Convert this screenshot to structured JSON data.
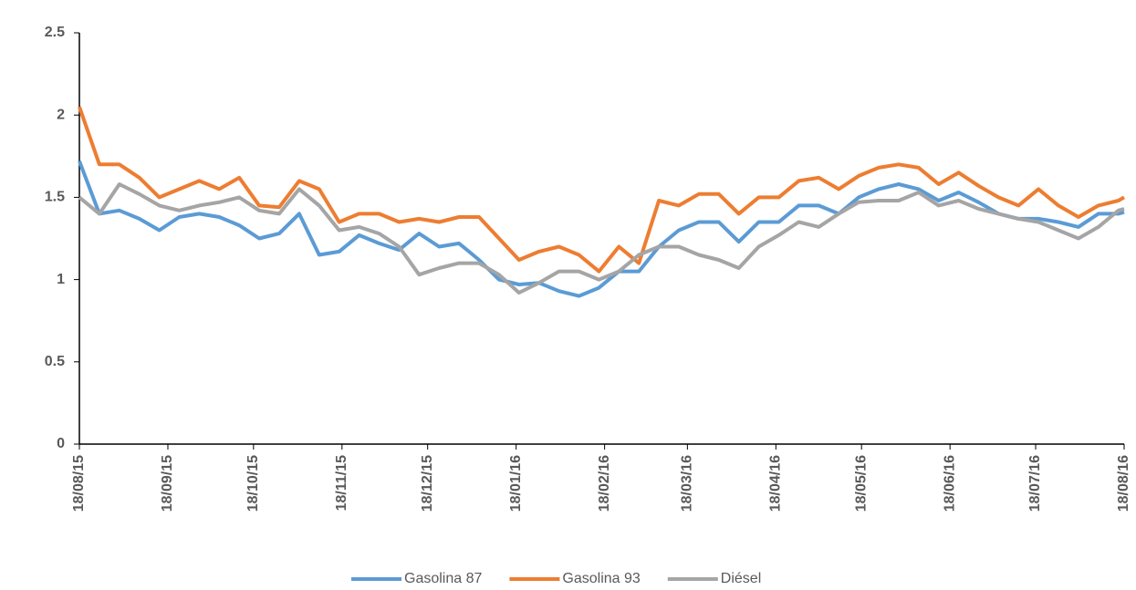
{
  "chart_data": {
    "type": "line",
    "x": [
      "18/08/15",
      "25/08/15",
      "01/09/15",
      "08/09/15",
      "15/09/15",
      "22/09/15",
      "29/09/15",
      "06/10/15",
      "13/10/15",
      "20/10/15",
      "27/10/15",
      "03/11/15",
      "10/11/15",
      "17/11/15",
      "24/11/15",
      "01/12/15",
      "08/12/15",
      "15/12/15",
      "22/12/15",
      "29/12/15",
      "05/01/16",
      "12/01/16",
      "19/01/16",
      "26/01/16",
      "02/02/16",
      "09/02/16",
      "16/02/16",
      "23/02/16",
      "01/03/16",
      "08/03/16",
      "15/03/16",
      "22/03/16",
      "29/03/16",
      "05/04/16",
      "12/04/16",
      "19/04/16",
      "26/04/16",
      "03/05/16",
      "10/05/16",
      "17/05/16",
      "24/05/16",
      "31/05/16",
      "07/06/16",
      "14/06/16",
      "21/06/16",
      "28/06/16",
      "05/07/16",
      "12/07/16",
      "19/07/16",
      "26/07/16",
      "02/08/16",
      "09/08/16",
      "16/08/16",
      "18/08/16"
    ],
    "series": [
      {
        "name": "Gasolina 87",
        "color": "#5b9bd5",
        "values": [
          1.72,
          1.4,
          1.42,
          1.37,
          1.3,
          1.38,
          1.4,
          1.38,
          1.33,
          1.25,
          1.28,
          1.4,
          1.15,
          1.17,
          1.27,
          1.22,
          1.18,
          1.28,
          1.2,
          1.22,
          1.12,
          1.0,
          0.97,
          0.98,
          0.93,
          0.9,
          0.95,
          1.05,
          1.05,
          1.2,
          1.3,
          1.35,
          1.35,
          1.23,
          1.35,
          1.35,
          1.45,
          1.45,
          1.4,
          1.5,
          1.55,
          1.58,
          1.55,
          1.48,
          1.53,
          1.47,
          1.4,
          1.37,
          1.37,
          1.35,
          1.32,
          1.4,
          1.4,
          1.41
        ]
      },
      {
        "name": "Gasolina 93",
        "color": "#ed7d31",
        "values": [
          2.05,
          1.7,
          1.7,
          1.62,
          1.5,
          1.55,
          1.6,
          1.55,
          1.62,
          1.45,
          1.44,
          1.6,
          1.55,
          1.35,
          1.4,
          1.4,
          1.35,
          1.37,
          1.35,
          1.38,
          1.38,
          1.25,
          1.12,
          1.17,
          1.2,
          1.15,
          1.05,
          1.2,
          1.1,
          1.48,
          1.45,
          1.52,
          1.52,
          1.4,
          1.5,
          1.5,
          1.6,
          1.62,
          1.55,
          1.63,
          1.68,
          1.7,
          1.68,
          1.58,
          1.65,
          1.57,
          1.5,
          1.45,
          1.55,
          1.45,
          1.38,
          1.45,
          1.48,
          1.5
        ]
      },
      {
        "name": "Diésel",
        "color": "#a5a5a5",
        "values": [
          1.5,
          1.4,
          1.58,
          1.52,
          1.45,
          1.42,
          1.45,
          1.47,
          1.5,
          1.42,
          1.4,
          1.55,
          1.45,
          1.3,
          1.32,
          1.28,
          1.2,
          1.03,
          1.07,
          1.1,
          1.1,
          1.03,
          0.92,
          0.98,
          1.05,
          1.05,
          1.0,
          1.05,
          1.15,
          1.2,
          1.2,
          1.15,
          1.12,
          1.07,
          1.2,
          1.27,
          1.35,
          1.32,
          1.4,
          1.47,
          1.48,
          1.48,
          1.53,
          1.45,
          1.48,
          1.43,
          1.4,
          1.37,
          1.35,
          1.3,
          1.25,
          1.32,
          1.42,
          1.43
        ]
      }
    ],
    "xlim": [
      "18/08/15",
      "18/08/16"
    ],
    "xticks": [
      "18/08/15",
      "18/09/15",
      "18/10/15",
      "18/11/15",
      "18/12/15",
      "18/01/16",
      "18/02/16",
      "18/03/16",
      "18/04/16",
      "18/05/16",
      "18/06/16",
      "18/07/16",
      "18/08/16"
    ],
    "ylim": [
      0,
      2.5
    ],
    "yticks": [
      0,
      0.5,
      1,
      1.5,
      2,
      2.5
    ],
    "legend": "bottom"
  }
}
